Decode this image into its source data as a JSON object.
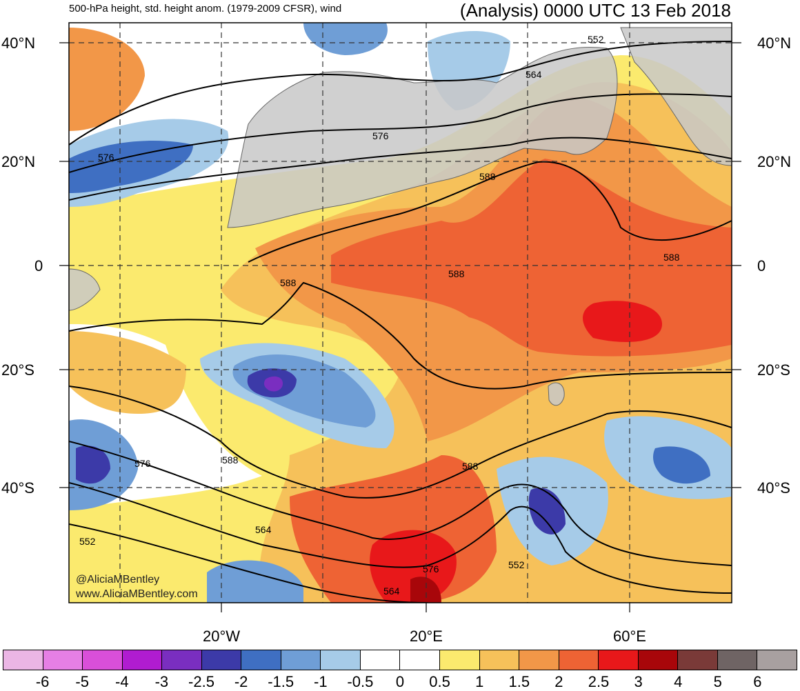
{
  "header": {
    "left_title": "500-hPa height, std. height anom. (1979-2009 CFSR), wind",
    "right_title": "(Analysis) 0000 UTC 13 Feb 2018"
  },
  "map": {
    "lat_labels": [
      "40°N",
      "20°N",
      "0",
      "20°S",
      "40°S"
    ],
    "lon_labels": [
      "20°W",
      "20°E",
      "60°E"
    ],
    "contour_labels": [
      "552",
      "564",
      "576",
      "576",
      "588",
      "588",
      "588",
      "588",
      "576",
      "588",
      "588",
      "564",
      "552",
      "576",
      "564",
      "552"
    ],
    "watermark_line1": "@AliciaMBentley",
    "watermark_line2": "www.AliciaMBentley.com"
  },
  "colorbar": {
    "labels": [
      "-6",
      "-5",
      "-4",
      "-3",
      "-2.5",
      "-2",
      "-1.5",
      "-1",
      "-0.5",
      "0",
      "0.5",
      "1",
      "1.5",
      "2",
      "2.5",
      "3",
      "4",
      "5",
      "6"
    ],
    "colors": [
      "#ebb6e5",
      "#e67fe5",
      "#d94fd9",
      "#b01cd0",
      "#7a2ec0",
      "#3c3aa8",
      "#3f6fc2",
      "#6f9ed6",
      "#a6cbe8",
      "#ffffff",
      "#ffffff",
      "#fbea6e",
      "#f6c15a",
      "#f29748",
      "#ee6334",
      "#e8181a",
      "#a8060a",
      "#7a3a38",
      "#6f6464",
      "#a8a0a0"
    ]
  }
}
